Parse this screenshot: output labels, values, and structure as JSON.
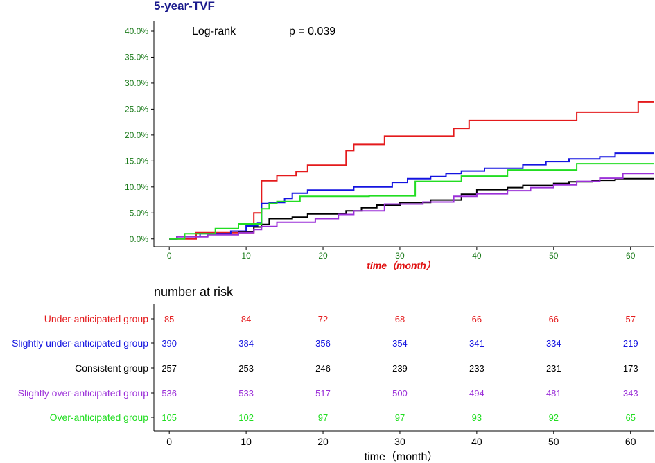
{
  "chart_data": {
    "type": "line",
    "step": true,
    "title": "5-year-TVF",
    "annotation_left": "Log-rank",
    "annotation_right": "p = 0.039",
    "xlabel": "time（month）",
    "ylabel": "",
    "xlim": [
      -2,
      63
    ],
    "ylim": [
      -1.5,
      42
    ],
    "xticks": [
      0,
      10,
      20,
      30,
      40,
      50,
      60
    ],
    "xtick_labels": [
      "0",
      "10",
      "20",
      "30",
      "40",
      "50",
      "60"
    ],
    "yticks": [
      0,
      5,
      10,
      15,
      20,
      25,
      30,
      35,
      40
    ],
    "ytick_labels": [
      "0.0%",
      "5.0%",
      "10.0%",
      "15.0%",
      "20.0%",
      "25.0%",
      "30.0%",
      "35.0%",
      "40.0%"
    ],
    "series": [
      {
        "name": "Under-anticipated group",
        "color": "#e41a1c",
        "x": [
          0,
          3,
          3.5,
          11,
          12,
          14,
          16.5,
          18,
          23,
          24,
          28,
          37,
          39,
          53,
          61,
          63
        ],
        "y": [
          0,
          0,
          1.2,
          5,
          11.2,
          12.2,
          13,
          14.2,
          17,
          18.2,
          19.8,
          21.3,
          22.8,
          24.4,
          26.4,
          26.4
        ]
      },
      {
        "name": "Slightly under-anticipated group",
        "color": "#1414e0",
        "x": [
          0,
          1,
          4,
          8,
          10,
          11.5,
          12,
          13,
          15,
          16,
          18,
          24,
          29,
          31,
          34,
          36,
          38,
          41,
          46,
          49,
          52,
          56,
          58,
          63
        ],
        "y": [
          0,
          0.5,
          1,
          1.5,
          2.5,
          3,
          6.8,
          7,
          7.8,
          8.8,
          9.4,
          10,
          10.9,
          11.6,
          12,
          12.6,
          13.1,
          13.6,
          14.3,
          14.9,
          15.4,
          15.8,
          16.5,
          16.5
        ]
      },
      {
        "name": "Consistent group",
        "color": "#000000",
        "x": [
          0,
          1,
          5,
          9,
          11,
          12,
          13,
          16,
          18,
          23,
          25,
          27,
          30,
          34,
          38,
          40,
          44,
          46,
          50,
          52,
          55,
          58,
          63
        ],
        "y": [
          0,
          0.5,
          0.9,
          1.4,
          2.3,
          2.8,
          3.9,
          4.2,
          4.8,
          5.4,
          6,
          6.5,
          7,
          7.5,
          8.6,
          9.5,
          9.9,
          10.3,
          10.7,
          11,
          11.3,
          11.6,
          11.6
        ]
      },
      {
        "name": "Slightly over-anticipated group",
        "color": "#9b30d8",
        "x": [
          0,
          1,
          5,
          9,
          11,
          12,
          14,
          19,
          22,
          24,
          28,
          33,
          37,
          40,
          44,
          47,
          50,
          53,
          56,
          59,
          63
        ],
        "y": [
          0,
          0.4,
          0.8,
          1.2,
          1.8,
          2.4,
          3.2,
          3.9,
          4.7,
          5.4,
          6.7,
          7.1,
          8.2,
          8.7,
          9.3,
          9.9,
          10.4,
          11.1,
          11.7,
          12.6,
          12.6
        ]
      },
      {
        "name": "Over-anticipated group",
        "color": "#22dd22",
        "x": [
          0,
          2,
          6,
          9,
          12,
          13,
          14,
          17,
          26,
          32,
          38,
          44,
          53,
          63
        ],
        "y": [
          0,
          1,
          2,
          2.9,
          5.8,
          6.8,
          7.2,
          8.2,
          8.3,
          11.1,
          12.1,
          13.3,
          14.5,
          14.5
        ]
      }
    ]
  },
  "risk_table": {
    "title": "number at risk",
    "times": [
      "0",
      "10",
      "20",
      "30",
      "40",
      "50",
      "60"
    ],
    "xlabel": "time（month）",
    "rows": [
      {
        "label": "Under-anticipated group",
        "color": "#e41a1c",
        "values": [
          "85",
          "84",
          "72",
          "68",
          "66",
          "66",
          "57"
        ]
      },
      {
        "label": "Slightly under-anticipated group",
        "color": "#1414e0",
        "values": [
          "390",
          "384",
          "356",
          "354",
          "341",
          "334",
          "219"
        ]
      },
      {
        "label": "Consistent group",
        "color": "#000000",
        "values": [
          "257",
          "253",
          "246",
          "239",
          "233",
          "231",
          "173"
        ]
      },
      {
        "label": "Slightly over-anticipated group",
        "color": "#9b30d8",
        "values": [
          "536",
          "533",
          "517",
          "500",
          "494",
          "481",
          "343"
        ]
      },
      {
        "label": "Over-anticipated group",
        "color": "#22dd22",
        "values": [
          "105",
          "102",
          "97",
          "97",
          "93",
          "92",
          "65"
        ]
      }
    ]
  }
}
